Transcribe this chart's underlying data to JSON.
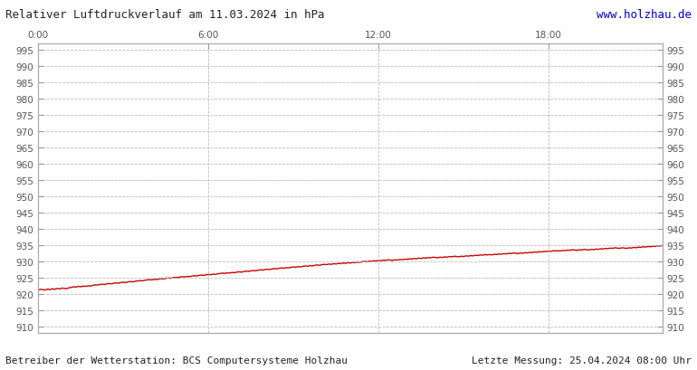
{
  "title": "Relativer Luftdruckverlauf am 11.03.2024 in hPa",
  "url": "www.holzhau.de",
  "footer_left": "Betreiber der Wetterstation: BCS Computersysteme Holzhau",
  "footer_right": "Letzte Messung: 25.04.2024 08:00 Uhr",
  "background_color": "#ffffff",
  "plot_bg_color": "#ffffff",
  "line_color": "#cc0000",
  "grid_color": "#bbbbbb",
  "text_color": "#555555",
  "url_color": "#0000cc",
  "ylim": [
    908,
    997
  ],
  "yticks": [
    910,
    915,
    920,
    925,
    930,
    935,
    940,
    945,
    950,
    955,
    960,
    965,
    970,
    975,
    980,
    985,
    990,
    995
  ],
  "xtick_labels": [
    "0:00",
    "6:00",
    "12:00",
    "18:00"
  ],
  "xtick_positions": [
    0,
    72,
    144,
    216
  ],
  "total_points": 265,
  "pressure_data": [
    921.2,
    921.4,
    921.3,
    921.2,
    921.5,
    921.3,
    921.6,
    921.4,
    921.7,
    921.5,
    921.8,
    921.7,
    921.6,
    921.9,
    922.0,
    922.2,
    922.1,
    922.3,
    922.2,
    922.4,
    922.3,
    922.5,
    922.4,
    922.6,
    922.8,
    922.7,
    922.9,
    923.0,
    922.9,
    923.1,
    923.2,
    923.1,
    923.3,
    923.4,
    923.3,
    923.5,
    923.6,
    923.5,
    923.7,
    923.8,
    923.7,
    923.9,
    924.0,
    924.1,
    924.0,
    924.2,
    924.3,
    924.4,
    924.3,
    924.5,
    924.4,
    924.6,
    924.7,
    924.6,
    924.8,
    924.9,
    924.8,
    925.0,
    925.1,
    925.0,
    925.2,
    925.3,
    925.2,
    925.4,
    925.3,
    925.5,
    925.6,
    925.5,
    925.7,
    925.8,
    925.7,
    925.9,
    926.0,
    925.9,
    926.1,
    926.0,
    926.2,
    926.3,
    926.4,
    926.3,
    926.5,
    926.4,
    926.6,
    926.5,
    926.7,
    926.8,
    926.7,
    926.9,
    927.0,
    926.9,
    927.1,
    927.2,
    927.1,
    927.3,
    927.4,
    927.3,
    927.5,
    927.6,
    927.5,
    927.7,
    927.8,
    927.7,
    927.9,
    928.0,
    927.9,
    928.1,
    928.0,
    928.2,
    928.3,
    928.2,
    928.4,
    928.3,
    928.5,
    928.6,
    928.5,
    928.7,
    928.6,
    928.8,
    928.9,
    928.8,
    929.0,
    929.1,
    929.0,
    929.2,
    929.1,
    929.3,
    929.2,
    929.4,
    929.3,
    929.5,
    929.4,
    929.6,
    929.5,
    929.7,
    929.6,
    929.8,
    929.7,
    929.9,
    930.0,
    929.9,
    930.1,
    930.0,
    930.2,
    930.1,
    930.3,
    930.2,
    930.4,
    930.3,
    930.5,
    930.4,
    930.3,
    930.5,
    930.4,
    930.6,
    930.5,
    930.7,
    930.6,
    930.8,
    930.7,
    930.9,
    930.8,
    931.0,
    930.9,
    931.1,
    931.0,
    931.2,
    931.1,
    931.3,
    931.2,
    931.1,
    931.3,
    931.2,
    931.4,
    931.3,
    931.5,
    931.4,
    931.6,
    931.5,
    931.4,
    931.6,
    931.5,
    931.7,
    931.6,
    931.8,
    931.7,
    931.9,
    931.8,
    932.0,
    931.9,
    932.1,
    932.0,
    932.1,
    932.0,
    932.2,
    932.1,
    932.3,
    932.2,
    932.4,
    932.3,
    932.5,
    932.4,
    932.6,
    932.5,
    932.4,
    932.6,
    932.5,
    932.7,
    932.6,
    932.8,
    932.7,
    932.9,
    932.8,
    933.0,
    932.9,
    933.1,
    933.0,
    933.2,
    933.1,
    933.3,
    933.2,
    933.3,
    933.2,
    933.4,
    933.3,
    933.5,
    933.4,
    933.6,
    933.5,
    933.4,
    933.6,
    933.5,
    933.7,
    933.6,
    933.5,
    933.7,
    933.6,
    933.8,
    933.7,
    933.9,
    933.8,
    934.0,
    933.9,
    934.1,
    934.0,
    934.2,
    934.1,
    934.0,
    934.2,
    934.1,
    934.0,
    934.2,
    934.1,
    934.3,
    934.2,
    934.4,
    934.3,
    934.5,
    934.4,
    934.6,
    934.5,
    934.7,
    934.6,
    934.8,
    934.7,
    934.9
  ]
}
